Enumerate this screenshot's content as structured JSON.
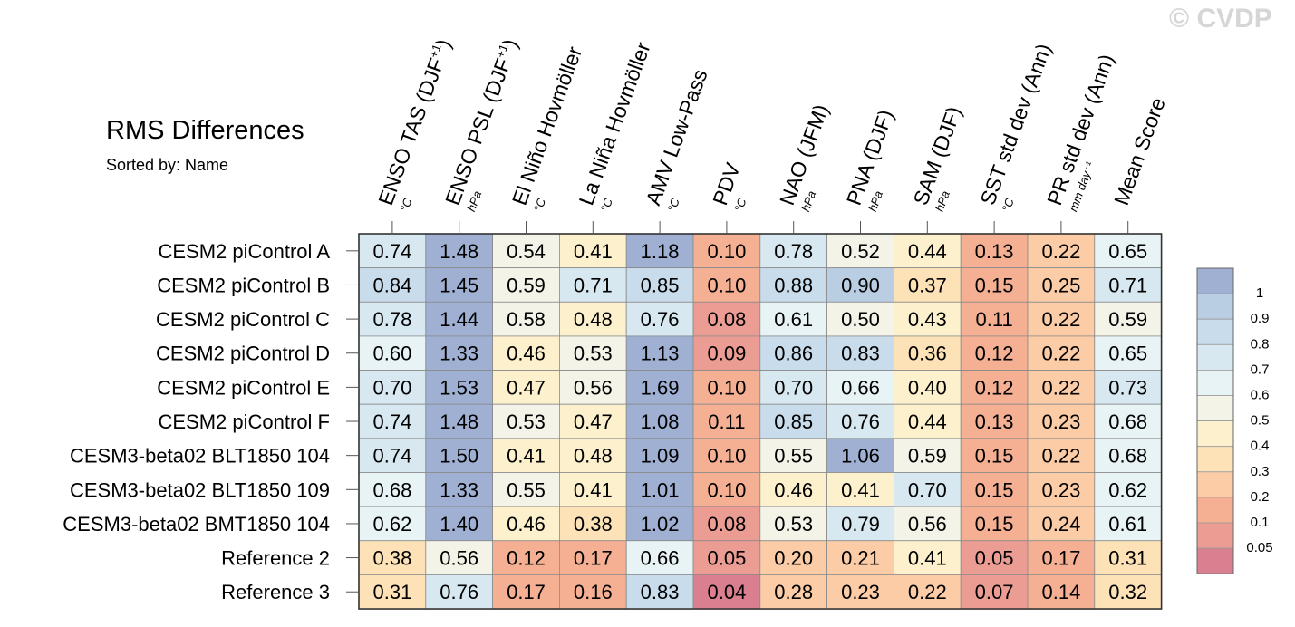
{
  "watermark": "© CVDP",
  "chart_data": {
    "type": "heatmap",
    "title": "RMS Differences",
    "subtitle": "Sorted by: Name",
    "columns": [
      {
        "label": "ENSO TAS (DJF",
        "sup": "+1",
        "close": ")",
        "unit": "°C"
      },
      {
        "label": "ENSO PSL (DJF",
        "sup": "+1",
        "close": ")",
        "unit": "hPa"
      },
      {
        "label": "El Niño Hovmöller",
        "sup": "",
        "close": "",
        "unit": "°C"
      },
      {
        "label": "La Niña Hovmöller",
        "sup": "",
        "close": "",
        "unit": "°C"
      },
      {
        "label": "AMV Low-Pass",
        "sup": "",
        "close": "",
        "unit": "°C"
      },
      {
        "label": "PDV",
        "sup": "",
        "close": "",
        "unit": "°C"
      },
      {
        "label": "NAO (JFM)",
        "sup": "",
        "close": "",
        "unit": "hPa"
      },
      {
        "label": "PNA (DJF)",
        "sup": "",
        "close": "",
        "unit": "hPa"
      },
      {
        "label": "SAM (DJF)",
        "sup": "",
        "close": "",
        "unit": "hPa"
      },
      {
        "label": "SST std dev (Ann)",
        "sup": "",
        "close": "",
        "unit": "°C"
      },
      {
        "label": "PR std dev (Ann)",
        "sup": "",
        "close": "",
        "unit": "mm day⁻¹"
      },
      {
        "label": "Mean Score",
        "sup": "",
        "close": "",
        "unit": ""
      }
    ],
    "rows": [
      "CESM2 piControl A",
      "CESM2 piControl B",
      "CESM2 piControl C",
      "CESM2 piControl D",
      "CESM2 piControl E",
      "CESM2 piControl F",
      "CESM3-beta02 BLT1850 104",
      "CESM3-beta02 BLT1850 109",
      "CESM3-beta02 BMT1850 104",
      "Reference 2",
      "Reference 3"
    ],
    "values": [
      [
        "0.74",
        "1.48",
        "0.54",
        "0.41",
        "1.18",
        "0.10",
        "0.78",
        "0.52",
        "0.44",
        "0.13",
        "0.22",
        "0.65"
      ],
      [
        "0.84",
        "1.45",
        "0.59",
        "0.71",
        "0.85",
        "0.10",
        "0.88",
        "0.90",
        "0.37",
        "0.15",
        "0.25",
        "0.71"
      ],
      [
        "0.78",
        "1.44",
        "0.58",
        "0.48",
        "0.76",
        "0.08",
        "0.61",
        "0.50",
        "0.43",
        "0.11",
        "0.22",
        "0.59"
      ],
      [
        "0.60",
        "1.33",
        "0.46",
        "0.53",
        "1.13",
        "0.09",
        "0.86",
        "0.83",
        "0.36",
        "0.12",
        "0.22",
        "0.65"
      ],
      [
        "0.70",
        "1.53",
        "0.47",
        "0.56",
        "1.69",
        "0.10",
        "0.70",
        "0.66",
        "0.40",
        "0.12",
        "0.22",
        "0.73"
      ],
      [
        "0.74",
        "1.48",
        "0.53",
        "0.47",
        "1.08",
        "0.11",
        "0.85",
        "0.76",
        "0.44",
        "0.13",
        "0.23",
        "0.68"
      ],
      [
        "0.74",
        "1.50",
        "0.41",
        "0.48",
        "1.09",
        "0.10",
        "0.55",
        "1.06",
        "0.59",
        "0.15",
        "0.22",
        "0.68"
      ],
      [
        "0.68",
        "1.33",
        "0.55",
        "0.41",
        "1.01",
        "0.10",
        "0.46",
        "0.41",
        "0.70",
        "0.15",
        "0.23",
        "0.62"
      ],
      [
        "0.62",
        "1.40",
        "0.46",
        "0.38",
        "1.02",
        "0.08",
        "0.53",
        "0.79",
        "0.56",
        "0.15",
        "0.24",
        "0.61"
      ],
      [
        "0.38",
        "0.56",
        "0.12",
        "0.17",
        "0.66",
        "0.05",
        "0.20",
        "0.21",
        "0.41",
        "0.05",
        "0.17",
        "0.31"
      ],
      [
        "0.31",
        "0.76",
        "0.17",
        "0.16",
        "0.83",
        "0.04",
        "0.28",
        "0.23",
        "0.22",
        "0.07",
        "0.14",
        "0.32"
      ]
    ],
    "colorbar": {
      "labels": [
        "1",
        "0.9",
        "0.8",
        "0.7",
        "0.6",
        "0.5",
        "0.4",
        "0.3",
        "0.2",
        "0.1",
        "0.05"
      ],
      "colors": [
        "#9fb0d3",
        "#b9cde3",
        "#c9dceb",
        "#d7e8f1",
        "#e8f3f6",
        "#f3f3e8",
        "#fdf1cd",
        "#fde2b8",
        "#fbcca6",
        "#f5b093",
        "#ec9d93",
        "#d97f8f"
      ]
    }
  }
}
